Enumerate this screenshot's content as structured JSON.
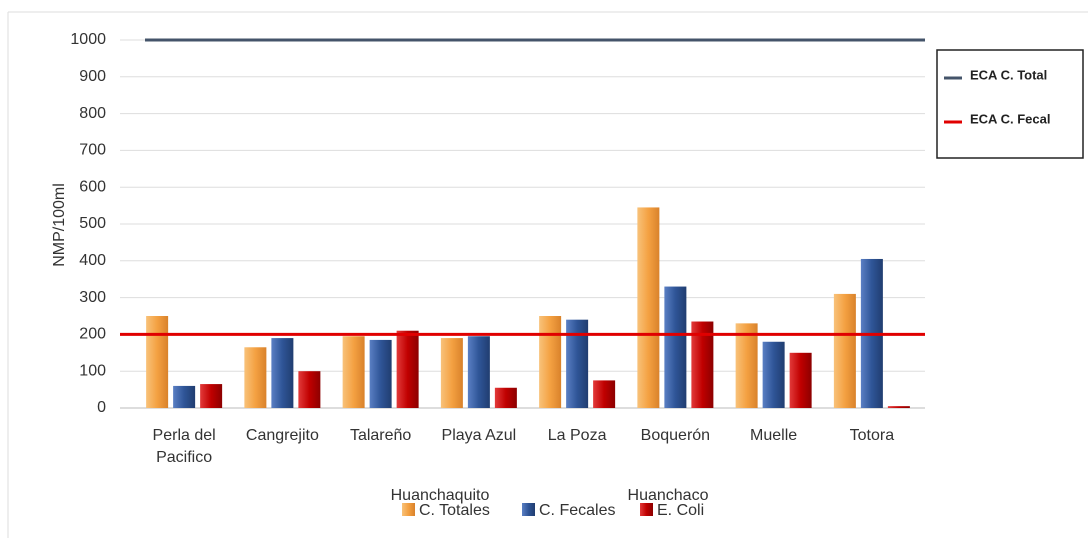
{
  "chart_data": {
    "type": "bar",
    "y_label": "NMP/100ml",
    "categories": [
      "Perla del Pacifico",
      "Cangrejito",
      "Talareño",
      "Playa Azul",
      "La Poza",
      "Boquerón",
      "Muelle",
      "Totora"
    ],
    "series": [
      {
        "name": "C. Totales",
        "color": "#f4a142",
        "values": [
          250,
          165,
          195,
          190,
          250,
          545,
          230,
          310
        ]
      },
      {
        "name": "C. Fecales",
        "color": "#2f5597",
        "values": [
          60,
          190,
          185,
          195,
          240,
          330,
          180,
          405
        ]
      },
      {
        "name": "E. Coli",
        "color": "#c00000",
        "values": [
          65,
          100,
          210,
          55,
          75,
          235,
          150,
          5
        ]
      }
    ],
    "reference_lines": [
      {
        "name": "ECA C. Total",
        "value": 1000,
        "color": "#44546a"
      },
      {
        "name": "ECA C. Fecal",
        "value": 200,
        "color": "#e00000"
      }
    ],
    "annotations": [
      "Huanchaquito",
      "Huanchaco"
    ],
    "ylim": [
      0,
      1000
    ],
    "yticks": [
      0,
      100,
      200,
      300,
      400,
      500,
      600,
      700,
      800,
      900,
      1000
    ],
    "grid": true
  }
}
